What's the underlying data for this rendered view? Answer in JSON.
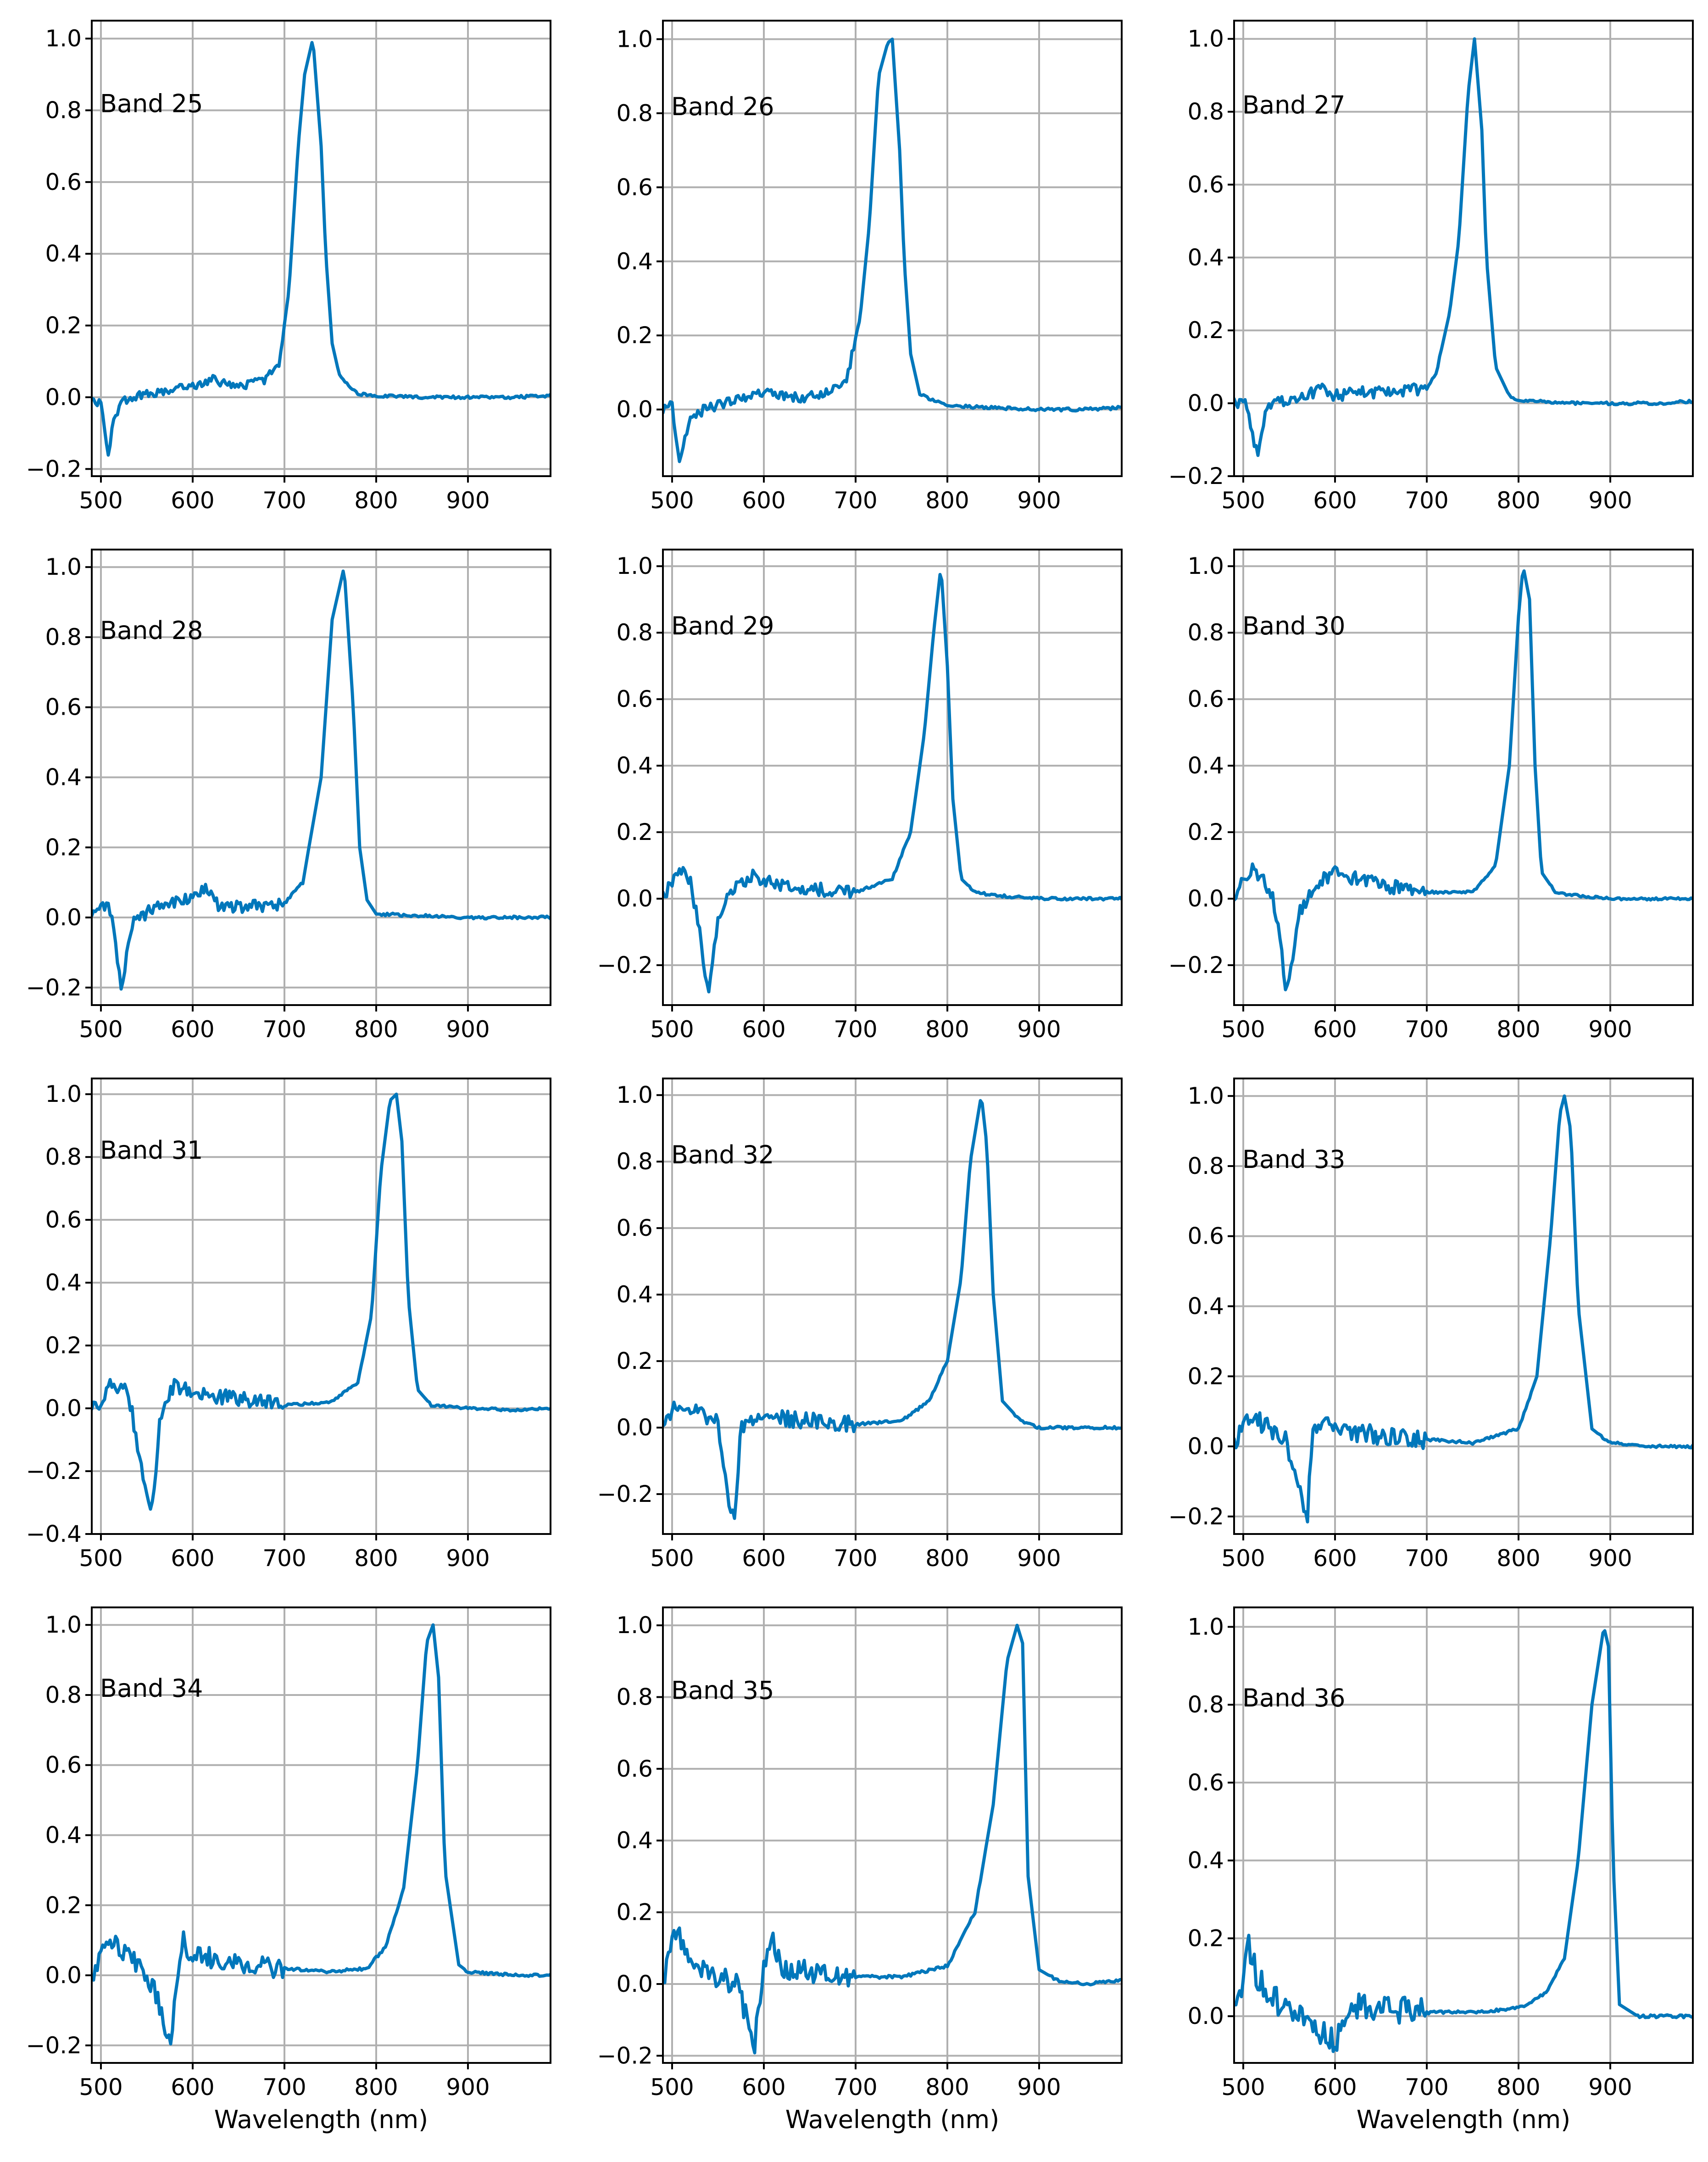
{
  "chart_data": [
    {
      "type": "line",
      "label": "Band 25",
      "xlabel": "",
      "xlim": [
        490,
        990
      ],
      "ylim": [
        -0.22,
        1.05
      ],
      "xticks": [
        500,
        600,
        700,
        800,
        900
      ],
      "yticks": [
        -0.2,
        0.0,
        0.2,
        0.4,
        0.6,
        0.8,
        1.0
      ],
      "yticklabels": [
        "−0.2",
        "0.0",
        "0.2",
        "0.4",
        "0.6",
        "0.8",
        "1.0"
      ],
      "series": [
        {
          "name": "Band 25",
          "peak": 731,
          "fwhm": 28,
          "x": [
            490,
            500,
            508,
            515,
            525,
            550,
            600,
            620,
            650,
            680,
            695,
            705,
            715,
            722,
            731,
            740,
            745,
            752,
            760,
            780,
            800,
            850,
            900,
            950,
            990
          ],
          "y": [
            0.0,
            -0.02,
            -0.16,
            -0.05,
            -0.01,
            0.01,
            0.03,
            0.05,
            0.03,
            0.05,
            0.1,
            0.3,
            0.7,
            0.9,
            1.0,
            0.7,
            0.4,
            0.15,
            0.06,
            0.01,
            0.005,
            0.0,
            0.0,
            0.0,
            0.005
          ]
        }
      ]
    },
    {
      "type": "line",
      "label": "Band 26",
      "xlabel": "",
      "xlim": [
        490,
        990
      ],
      "ylim": [
        -0.18,
        1.05
      ],
      "xticks": [
        500,
        600,
        700,
        800,
        900
      ],
      "yticks": [
        0.0,
        0.2,
        0.4,
        0.6,
        0.8,
        1.0
      ],
      "yticklabels": [
        "0.0",
        "0.2",
        "0.4",
        "0.6",
        "0.8",
        "1.0"
      ],
      "series": [
        {
          "name": "Band 26",
          "peak": 740,
          "fwhm": 32,
          "x": [
            490,
            500,
            508,
            513,
            520,
            535,
            560,
            600,
            620,
            640,
            670,
            690,
            705,
            715,
            725,
            735,
            740,
            748,
            753,
            760,
            770,
            800,
            850,
            900,
            950,
            990
          ],
          "y": [
            0.0,
            0.01,
            -0.13,
            -0.08,
            -0.02,
            0.0,
            0.02,
            0.05,
            0.04,
            0.03,
            0.05,
            0.08,
            0.25,
            0.5,
            0.9,
            0.99,
            1.0,
            0.7,
            0.4,
            0.15,
            0.04,
            0.01,
            0.005,
            0.0,
            0.0,
            0.005
          ]
        }
      ]
    },
    {
      "type": "line",
      "label": "Band 27",
      "xlabel": "",
      "xlim": [
        490,
        990
      ],
      "ylim": [
        -0.2,
        1.05
      ],
      "xticks": [
        500,
        600,
        700,
        800,
        900
      ],
      "yticks": [
        -0.2,
        0.0,
        0.2,
        0.4,
        0.6,
        0.8,
        1.0
      ],
      "yticklabels": [
        "−0.2",
        "0.0",
        "0.2",
        "0.4",
        "0.6",
        "0.8",
        "1.0"
      ],
      "series": [
        {
          "name": "Band 27",
          "peak": 752,
          "fwhm": 36,
          "x": [
            490,
            500,
            505,
            515,
            525,
            550,
            590,
            600,
            620,
            650,
            700,
            710,
            725,
            735,
            745,
            752,
            760,
            765,
            775,
            790,
            800,
            850,
            900,
            950,
            990
          ],
          "y": [
            0.0,
            0.01,
            -0.02,
            -0.14,
            -0.01,
            0.01,
            0.04,
            0.02,
            0.03,
            0.03,
            0.04,
            0.08,
            0.25,
            0.45,
            0.85,
            1.0,
            0.75,
            0.4,
            0.1,
            0.02,
            0.01,
            0.0,
            0.0,
            0.0,
            0.005
          ]
        }
      ]
    },
    {
      "type": "line",
      "label": "Band 28",
      "xlabel": "",
      "xlim": [
        490,
        990
      ],
      "ylim": [
        -0.25,
        1.05
      ],
      "xticks": [
        500,
        600,
        700,
        800,
        900
      ],
      "yticks": [
        -0.2,
        0.0,
        0.2,
        0.4,
        0.6,
        0.8,
        1.0
      ],
      "yticklabels": [
        "−0.2",
        "0.0",
        "0.2",
        "0.4",
        "0.6",
        "0.8",
        "1.0"
      ],
      "series": [
        {
          "name": "Band 28",
          "peak": 765,
          "fwhm": 40,
          "x": [
            490,
            500,
            508,
            515,
            522,
            528,
            535,
            560,
            590,
            615,
            630,
            660,
            700,
            720,
            740,
            752,
            765,
            775,
            782,
            790,
            800,
            850,
            900,
            950,
            990
          ],
          "y": [
            0.0,
            0.02,
            0.04,
            -0.05,
            -0.21,
            -0.1,
            -0.01,
            0.03,
            0.05,
            0.08,
            0.03,
            0.03,
            0.04,
            0.1,
            0.4,
            0.85,
            1.0,
            0.6,
            0.2,
            0.05,
            0.01,
            0.005,
            0.0,
            0.0,
            0.0
          ]
        }
      ]
    },
    {
      "type": "line",
      "label": "Band 29",
      "xlabel": "",
      "xlim": [
        490,
        990
      ],
      "ylim": [
        -0.32,
        1.05
      ],
      "xticks": [
        500,
        600,
        700,
        800,
        900
      ],
      "yticks": [
        -0.2,
        0.0,
        0.2,
        0.4,
        0.6,
        0.8,
        1.0
      ],
      "yticklabels": [
        "−0.2",
        "0.0",
        "0.2",
        "0.4",
        "0.6",
        "0.8",
        "1.0"
      ],
      "series": [
        {
          "name": "Band 29",
          "peak": 793,
          "fwhm": 30,
          "x": [
            490,
            500,
            510,
            520,
            530,
            540,
            550,
            570,
            590,
            600,
            650,
            700,
            740,
            760,
            775,
            785,
            793,
            800,
            806,
            815,
            830,
            850,
            900,
            950,
            990
          ],
          "y": [
            0.0,
            0.05,
            0.09,
            0.05,
            -0.1,
            -0.3,
            -0.05,
            0.04,
            0.07,
            0.05,
            0.03,
            0.02,
            0.06,
            0.2,
            0.5,
            0.8,
            1.0,
            0.7,
            0.3,
            0.06,
            0.02,
            0.01,
            0.0,
            0.0,
            0.0
          ]
        }
      ]
    },
    {
      "type": "line",
      "label": "Band 30",
      "xlabel": "",
      "xlim": [
        490,
        990
      ],
      "ylim": [
        -0.32,
        1.05
      ],
      "xticks": [
        500,
        600,
        700,
        800,
        900
      ],
      "yticks": [
        -0.2,
        0.0,
        0.2,
        0.4,
        0.6,
        0.8,
        1.0
      ],
      "yticklabels": [
        "−0.2",
        "0.0",
        "0.2",
        "0.4",
        "0.6",
        "0.8",
        "1.0"
      ],
      "series": [
        {
          "name": "Band 30",
          "peak": 805,
          "fwhm": 30,
          "x": [
            490,
            500,
            510,
            520,
            530,
            540,
            547,
            560,
            580,
            600,
            650,
            700,
            750,
            775,
            790,
            800,
            805,
            812,
            818,
            825,
            840,
            860,
            900,
            950,
            990
          ],
          "y": [
            0.0,
            0.05,
            0.1,
            0.06,
            0.02,
            -0.1,
            -0.3,
            -0.05,
            0.05,
            0.08,
            0.04,
            0.02,
            0.02,
            0.1,
            0.4,
            0.85,
            1.0,
            0.9,
            0.4,
            0.08,
            0.02,
            0.01,
            0.0,
            0.0,
            0.0
          ]
        }
      ]
    },
    {
      "type": "line",
      "label": "Band 31",
      "xlabel": "",
      "xlim": [
        490,
        990
      ],
      "ylim": [
        -0.4,
        1.05
      ],
      "xticks": [
        500,
        600,
        700,
        800,
        900
      ],
      "yticks": [
        -0.4,
        -0.2,
        0.0,
        0.2,
        0.4,
        0.6,
        0.8,
        1.0
      ],
      "yticklabels": [
        "−0.4",
        "−0.2",
        "0.0",
        "0.2",
        "0.4",
        "0.6",
        "0.8",
        "1.0"
      ],
      "series": [
        {
          "name": "Band 31",
          "peak": 822,
          "fwhm": 35,
          "x": [
            490,
            500,
            510,
            530,
            545,
            555,
            565,
            580,
            600,
            650,
            700,
            750,
            780,
            795,
            805,
            815,
            822,
            828,
            835,
            845,
            860,
            900,
            950,
            990
          ],
          "y": [
            0.0,
            0.01,
            0.07,
            0.05,
            -0.2,
            -0.34,
            -0.02,
            0.07,
            0.05,
            0.03,
            0.01,
            0.02,
            0.08,
            0.3,
            0.75,
            0.98,
            1.0,
            0.85,
            0.35,
            0.06,
            0.01,
            0.0,
            -0.005,
            0.0
          ]
        }
      ]
    },
    {
      "type": "line",
      "label": "Band 32",
      "xlabel": "",
      "xlim": [
        490,
        990
      ],
      "ylim": [
        -0.32,
        1.05
      ],
      "xticks": [
        500,
        600,
        700,
        800,
        900
      ],
      "yticks": [
        -0.2,
        0.0,
        0.2,
        0.4,
        0.6,
        0.8,
        1.0
      ],
      "yticklabels": [
        "−0.2",
        "0.0",
        "0.2",
        "0.4",
        "0.6",
        "0.8",
        "1.0"
      ],
      "series": [
        {
          "name": "Band 32",
          "peak": 837,
          "fwhm": 35,
          "x": [
            490,
            500,
            510,
            530,
            550,
            560,
            568,
            575,
            590,
            620,
            650,
            700,
            750,
            780,
            800,
            815,
            825,
            837,
            843,
            850,
            860,
            880,
            900,
            950,
            990
          ],
          "y": [
            0.0,
            0.05,
            0.08,
            0.04,
            0.02,
            -0.2,
            -0.27,
            0.0,
            0.04,
            0.03,
            0.02,
            0.01,
            0.02,
            0.08,
            0.2,
            0.45,
            0.8,
            1.0,
            0.85,
            0.4,
            0.08,
            0.02,
            0.0,
            0.0,
            0.0
          ]
        }
      ]
    },
    {
      "type": "line",
      "label": "Band 33",
      "xlabel": "",
      "xlim": [
        490,
        990
      ],
      "ylim": [
        -0.25,
        1.05
      ],
      "xticks": [
        500,
        600,
        700,
        800,
        900
      ],
      "yticks": [
        -0.2,
        0.0,
        0.2,
        0.4,
        0.6,
        0.8,
        1.0
      ],
      "yticklabels": [
        "−0.2",
        "0.0",
        "0.2",
        "0.4",
        "0.6",
        "0.8",
        "1.0"
      ],
      "series": [
        {
          "name": "Band 33",
          "peak": 850,
          "fwhm": 35,
          "x": [
            490,
            500,
            510,
            525,
            545,
            560,
            570,
            575,
            585,
            600,
            650,
            700,
            750,
            800,
            820,
            835,
            845,
            850,
            857,
            865,
            880,
            900,
            950,
            990
          ],
          "y": [
            0.0,
            0.05,
            0.08,
            0.06,
            0.03,
            -0.12,
            -0.22,
            0.05,
            0.08,
            0.05,
            0.03,
            0.02,
            0.01,
            0.05,
            0.2,
            0.6,
            0.95,
            1.0,
            0.9,
            0.4,
            0.05,
            0.01,
            0.0,
            0.0
          ]
        }
      ]
    },
    {
      "type": "line",
      "label": "Band 34",
      "xlabel": "Wavelength (nm)",
      "xlim": [
        490,
        990
      ],
      "ylim": [
        -0.25,
        1.05
      ],
      "xticks": [
        500,
        600,
        700,
        800,
        900
      ],
      "yticks": [
        -0.2,
        0.0,
        0.2,
        0.4,
        0.6,
        0.8,
        1.0
      ],
      "yticklabels": [
        "−0.2",
        "0.0",
        "0.2",
        "0.4",
        "0.6",
        "0.8",
        "1.0"
      ],
      "series": [
        {
          "name": "Band 34",
          "peak": 862,
          "fwhm": 35,
          "x": [
            490,
            500,
            505,
            520,
            545,
            560,
            575,
            580,
            590,
            600,
            620,
            650,
            700,
            750,
            790,
            810,
            830,
            845,
            855,
            862,
            868,
            875,
            890,
            900,
            950,
            990
          ],
          "y": [
            0.0,
            0.05,
            0.12,
            0.08,
            0.02,
            -0.05,
            -0.2,
            -0.1,
            0.1,
            0.05,
            0.05,
            0.03,
            0.02,
            0.01,
            0.02,
            0.08,
            0.25,
            0.6,
            0.95,
            1.0,
            0.85,
            0.3,
            0.03,
            0.01,
            0.0,
            0.0
          ]
        }
      ]
    },
    {
      "type": "line",
      "label": "Band 35",
      "xlabel": "Wavelength (nm)",
      "xlim": [
        490,
        990
      ],
      "ylim": [
        -0.22,
        1.05
      ],
      "xticks": [
        500,
        600,
        700,
        800,
        900
      ],
      "yticks": [
        -0.2,
        0.0,
        0.2,
        0.4,
        0.6,
        0.8,
        1.0
      ],
      "yticklabels": [
        "−0.2",
        "0.0",
        "0.2",
        "0.4",
        "0.6",
        "0.8",
        "1.0"
      ],
      "series": [
        {
          "name": "Band 35",
          "peak": 876,
          "fwhm": 35,
          "x": [
            490,
            500,
            505,
            520,
            545,
            570,
            590,
            600,
            610,
            620,
            650,
            700,
            750,
            800,
            830,
            850,
            865,
            876,
            882,
            888,
            900,
            920,
            950,
            990
          ],
          "y": [
            0.0,
            0.1,
            0.15,
            0.06,
            0.02,
            0.0,
            -0.17,
            0.05,
            0.12,
            0.05,
            0.03,
            0.02,
            0.02,
            0.05,
            0.2,
            0.5,
            0.9,
            1.0,
            0.95,
            0.3,
            0.04,
            0.01,
            0.0,
            0.01
          ]
        }
      ]
    },
    {
      "type": "line",
      "label": "Band 36",
      "xlabel": "Wavelength (nm)",
      "xlim": [
        490,
        990
      ],
      "ylim": [
        -0.12,
        1.05
      ],
      "xticks": [
        500,
        600,
        700,
        800,
        900
      ],
      "yticks": [
        0.0,
        0.2,
        0.4,
        0.6,
        0.8,
        1.0
      ],
      "yticklabels": [
        "0.0",
        "0.2",
        "0.4",
        "0.6",
        "0.8",
        "1.0"
      ],
      "series": [
        {
          "name": "Band 36",
          "peak": 893,
          "fwhm": 35,
          "x": [
            490,
            500,
            505,
            515,
            530,
            560,
            580,
            600,
            620,
            650,
            700,
            750,
            800,
            830,
            850,
            865,
            880,
            893,
            898,
            903,
            910,
            930,
            960,
            990
          ],
          "y": [
            0.0,
            0.1,
            0.2,
            0.1,
            0.05,
            0.0,
            -0.03,
            -0.07,
            0.03,
            0.02,
            0.01,
            0.01,
            0.02,
            0.06,
            0.15,
            0.4,
            0.8,
            1.0,
            0.95,
            0.4,
            0.03,
            0.0,
            0.0,
            0.0
          ]
        }
      ]
    }
  ]
}
